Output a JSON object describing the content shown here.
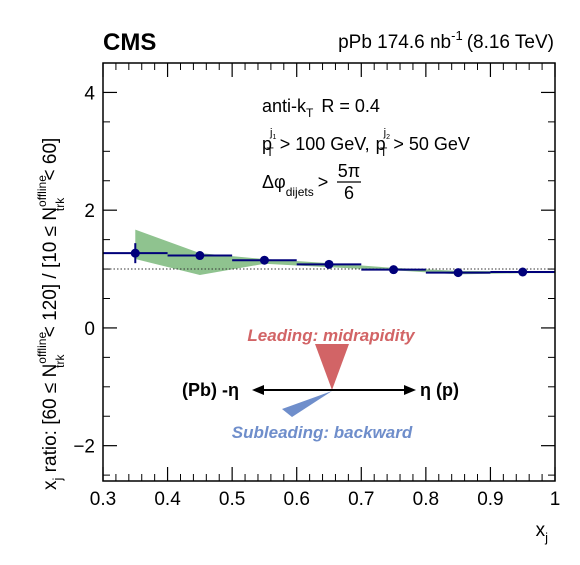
{
  "header": {
    "experiment": "CMS",
    "lumi_prefix": "pPb 174.6 nb",
    "lumi_exp": "-1",
    "lumi_suffix": "(8.16 TeV)"
  },
  "annotations": {
    "jet_algo": "anti-k",
    "jet_algo_sub": "T",
    "jet_radius": "R = 0.4",
    "pt_lead_p": "p",
    "pt_lead_sup": "j",
    "pt_lead_sup2": "1",
    "pt_lead_sub": "T",
    "pt_lead_cut": "> 100 GeV,",
    "pt_sub_p": "p",
    "pt_sub_sup": "j",
    "pt_sub_sup2": "2",
    "pt_sub_sub": "T",
    "pt_sub_cut": "> 50 GeV",
    "dphi_symbol": "Δφ",
    "dphi_sub": "dijets",
    "dphi_gt": ">",
    "dphi_num": "5π",
    "dphi_den": "6"
  },
  "inset": {
    "leading_label": "Leading: midrapidity",
    "subleading_label": "Subleading: backward",
    "left_label": "(Pb) -η",
    "right_label": "η (p)",
    "leading_color": "#d26466",
    "subleading_color": "#6f8ecb"
  },
  "chart_data": {
    "type": "scatter",
    "xlabel": "x",
    "xlabel_sub": "j",
    "ylabel_parts": {
      "a": "x",
      "a_sub": "j",
      "b": " ratio: [60 ≤ N",
      "sup": "offline",
      "sub": "trk",
      "c": " < 120] / [10 ≤ N",
      "sup2": "offline",
      "sub2": "trk",
      "d": " < 60]"
    },
    "xlim": [
      0.3,
      1.0
    ],
    "ylim": [
      -2.6,
      4.5
    ],
    "xticks": [
      "0.3",
      "0.4",
      "0.5",
      "0.6",
      "0.7",
      "0.8",
      "0.9",
      "1"
    ],
    "yticks": [
      "−2",
      "0",
      "2",
      "4"
    ],
    "ytick_values": [
      -2,
      0,
      2,
      4
    ],
    "reference_line": 1.0,
    "series": [
      {
        "points": [
          {
            "x": 0.35,
            "y": 1.27,
            "xerr": 0.05,
            "yerr": 0.17
          },
          {
            "x": 0.45,
            "y": 1.23,
            "xerr": 0.05,
            "yerr": 0.03
          },
          {
            "x": 0.55,
            "y": 1.15,
            "xerr": 0.05,
            "yerr": 0.02
          },
          {
            "x": 0.65,
            "y": 1.08,
            "xerr": 0.05,
            "yerr": 0.02
          },
          {
            "x": 0.75,
            "y": 0.99,
            "xerr": 0.05,
            "yerr": 0.02
          },
          {
            "x": 0.85,
            "y": 0.94,
            "xerr": 0.05,
            "yerr": 0.02
          },
          {
            "x": 0.95,
            "y": 0.95,
            "xerr": 0.05,
            "yerr": 0.02
          }
        ]
      }
    ],
    "systematic_band": {
      "x": [
        0.35,
        0.45,
        0.55,
        0.65,
        0.75,
        0.85,
        0.95,
        1.0
      ],
      "upper": [
        1.67,
        1.27,
        1.17,
        1.1,
        1.02,
        0.97,
        0.96,
        0.96
      ],
      "lower": [
        1.17,
        0.9,
        1.09,
        1.03,
        0.98,
        0.91,
        0.93,
        0.93
      ]
    },
    "colors": {
      "points": "#00007a",
      "band": "#8fc38f",
      "reference": "#333333"
    }
  }
}
